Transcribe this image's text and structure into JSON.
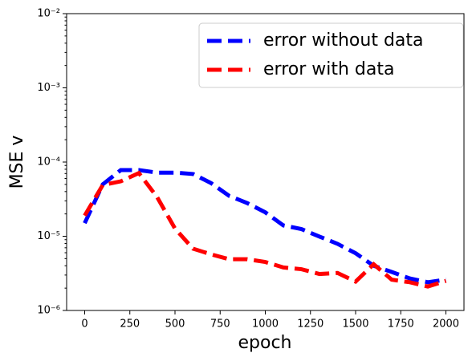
{
  "chart_data": {
    "type": "line",
    "xlabel": "epoch",
    "ylabel": "MSE v",
    "x": [
      0,
      100,
      200,
      300,
      400,
      500,
      600,
      700,
      800,
      900,
      1000,
      1100,
      1200,
      1300,
      1400,
      1500,
      1600,
      1700,
      1800,
      1900,
      2000
    ],
    "series": [
      {
        "name": "error without data",
        "color": "#0000ff",
        "values": [
          1.5e-05,
          5e-05,
          7.8e-05,
          7.8e-05,
          7.2e-05,
          7.2e-05,
          6.9e-05,
          5.2e-05,
          3.5e-05,
          2.8e-05,
          2.1e-05,
          1.4e-05,
          1.25e-05,
          9.9e-06,
          7.9e-06,
          5.9e-06,
          4e-06,
          3.3e-06,
          2.7e-06,
          2.4e-06,
          2.6e-06
        ]
      },
      {
        "name": "error with data",
        "color": "#ff0000",
        "values": [
          1.9e-05,
          4.9e-05,
          5.5e-05,
          7.1e-05,
          3.4e-05,
          1.27e-05,
          6.8e-06,
          5.7e-06,
          4.9e-06,
          4.9e-06,
          4.5e-06,
          3.8e-06,
          3.6e-06,
          3.1e-06,
          3.2e-06,
          2.45e-06,
          4.2e-06,
          2.6e-06,
          2.4e-06,
          2.1e-06,
          2.5e-06
        ]
      }
    ],
    "xlim": [
      -100,
      2100
    ],
    "xticks": [
      0,
      250,
      500,
      750,
      1000,
      1250,
      1500,
      1750,
      2000
    ],
    "ylim": [
      1e-06,
      0.01
    ],
    "ylog": true,
    "yticks": [
      {
        "value": 1e-06,
        "label": "10⁻⁶"
      },
      {
        "value": 1e-05,
        "label": "10⁻⁵"
      },
      {
        "value": 0.0001,
        "label": "10⁻⁴"
      },
      {
        "value": 0.001,
        "label": "10⁻³"
      },
      {
        "value": 0.01,
        "label": "10⁻²"
      }
    ],
    "legend": "upper right"
  }
}
